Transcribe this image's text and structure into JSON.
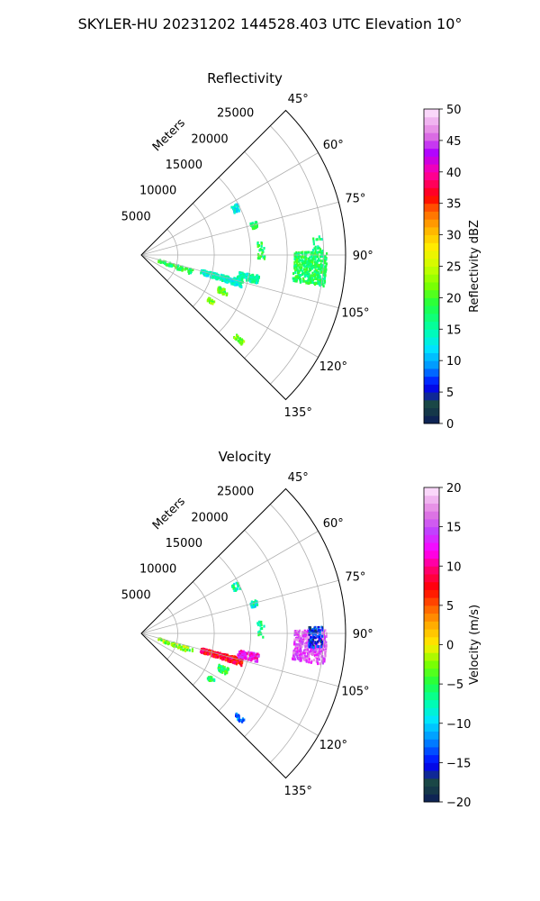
{
  "title": "SKYLER-HU  20231202  144528.403 UTC Elevation 10°",
  "chart_data": [
    {
      "type": "polar-sector-ppi",
      "title": "Reflectivity",
      "range_label": "Meters",
      "range_ticks": [
        5000,
        10000,
        15000,
        20000,
        25000
      ],
      "range_max": 28000,
      "azimuth_range": [
        45,
        135
      ],
      "azimuth_ticks": [
        "45°",
        "60°",
        "75°",
        "90°",
        "105°",
        "120°",
        "135°"
      ],
      "grid": true,
      "colorbar": {
        "label": "Reflectivity dBZ",
        "min": 0,
        "max": 50,
        "ticks": [
          "0",
          "5",
          "10",
          "15",
          "20",
          "25",
          "30",
          "35",
          "40",
          "45",
          "50"
        ]
      },
      "echoes": [
        {
          "name": "cluster-east",
          "az_range": [
            89,
            100
          ],
          "r_range": [
            21000,
            25500
          ],
          "value": 18,
          "density": 0.55
        },
        {
          "name": "cluster-east-edge",
          "az_range": [
            84,
            90
          ],
          "r_range": [
            23500,
            25000
          ],
          "value": 17,
          "density": 0.12
        },
        {
          "name": "band-ring3",
          "az_range": [
            104,
            108
          ],
          "r_range": [
            8500,
            14500
          ],
          "value": 14,
          "density": 0.55
        },
        {
          "name": "band-ring3b",
          "az_range": [
            100,
            104
          ],
          "r_range": [
            13500,
            16500
          ],
          "value": 15,
          "density": 0.5
        },
        {
          "name": "streak-north",
          "az_range": [
            62,
            66
          ],
          "r_range": [
            14000,
            15000
          ],
          "value": 13,
          "density": 0.4
        },
        {
          "name": "spot-75",
          "az_range": [
            74,
            77
          ],
          "r_range": [
            15500,
            16500
          ],
          "value": 18,
          "density": 0.35
        },
        {
          "name": "line-88",
          "az_range": [
            84,
            92
          ],
          "r_range": [
            16000,
            17000
          ],
          "value": 18,
          "density": 0.2
        },
        {
          "name": "spot-near-120",
          "az_range": [
            112,
            116
          ],
          "r_range": [
            11500,
            13000
          ],
          "value": 20,
          "density": 0.45
        },
        {
          "name": "spot-126",
          "az_range": [
            122,
            125
          ],
          "r_range": [
            11000,
            12000
          ],
          "value": 22,
          "density": 0.5
        },
        {
          "name": "spot-133",
          "az_range": [
            130,
            132
          ],
          "r_range": [
            17000,
            18500
          ],
          "value": 22,
          "density": 0.55
        },
        {
          "name": "near-small",
          "az_range": [
            106,
            112
          ],
          "r_range": [
            2500,
            7500
          ],
          "value": 18,
          "density": 0.15
        }
      ]
    },
    {
      "type": "polar-sector-ppi",
      "title": "Velocity",
      "range_label": "Meters",
      "range_ticks": [
        5000,
        10000,
        15000,
        20000,
        25000
      ],
      "range_max": 28000,
      "azimuth_range": [
        45,
        135
      ],
      "azimuth_ticks": [
        "45°",
        "60°",
        "75°",
        "90°",
        "105°",
        "120°",
        "135°"
      ],
      "grid": true,
      "colorbar": {
        "label": "Velocity (m/s)",
        "min": -20,
        "max": 20,
        "ticks": [
          "−20",
          "−15",
          "−10",
          "−5",
          "0",
          "5",
          "10",
          "15",
          "20"
        ]
      },
      "echoes": [
        {
          "name": "cluster-east",
          "az_range": [
            89,
            100
          ],
          "r_range": [
            21000,
            25500
          ],
          "value": 15,
          "density": 0.5
        },
        {
          "name": "cluster-east-blue",
          "az_range": [
            88,
            95
          ],
          "r_range": [
            23000,
            25000
          ],
          "value": -15,
          "density": 0.35
        },
        {
          "name": "band-ring3",
          "az_range": [
            104,
            108
          ],
          "r_range": [
            8500,
            14500
          ],
          "value": 8,
          "density": 0.55
        },
        {
          "name": "band-ring3b",
          "az_range": [
            100,
            104
          ],
          "r_range": [
            13500,
            16500
          ],
          "value": 12,
          "density": 0.5
        },
        {
          "name": "streak-north",
          "az_range": [
            62,
            66
          ],
          "r_range": [
            14000,
            15000
          ],
          "value": -7,
          "density": 0.4
        },
        {
          "name": "spot-75",
          "az_range": [
            74,
            77
          ],
          "r_range": [
            15500,
            16500
          ],
          "value": -8,
          "density": 0.35
        },
        {
          "name": "line-88",
          "az_range": [
            84,
            92
          ],
          "r_range": [
            16000,
            17000
          ],
          "value": -7,
          "density": 0.2
        },
        {
          "name": "spot-near-120",
          "az_range": [
            112,
            116
          ],
          "r_range": [
            11500,
            13000
          ],
          "value": -5,
          "density": 0.45
        },
        {
          "name": "spot-126",
          "az_range": [
            122,
            125
          ],
          "r_range": [
            11000,
            12000
          ],
          "value": -6,
          "density": 0.5
        },
        {
          "name": "spot-133",
          "az_range": [
            130,
            132
          ],
          "r_range": [
            17000,
            18500
          ],
          "value": -12,
          "density": 0.55
        },
        {
          "name": "near-small",
          "az_range": [
            106,
            112
          ],
          "r_range": [
            2500,
            7500
          ],
          "value": -3,
          "density": 0.15
        }
      ]
    }
  ]
}
